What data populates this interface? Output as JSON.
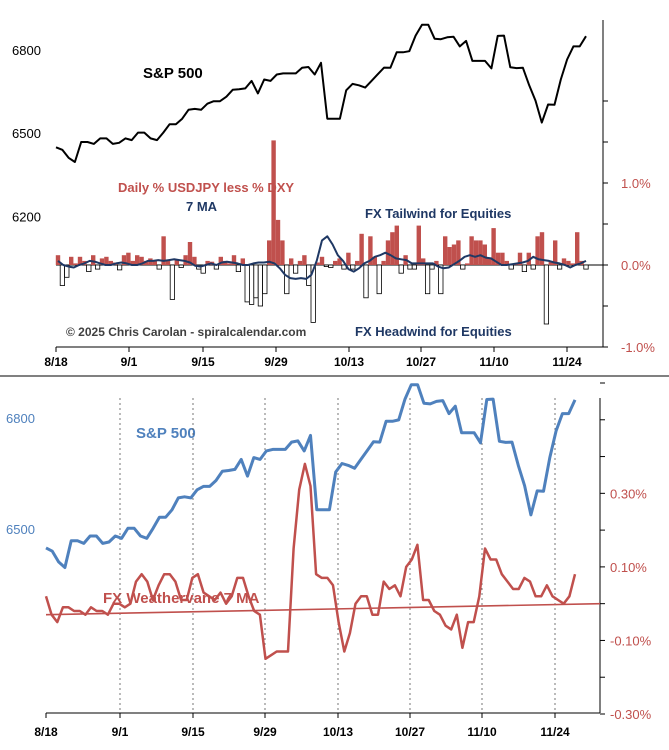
{
  "chart_data": [
    {
      "type": "line+bar",
      "x_ticks": [
        "8/18",
        "9/1",
        "9/15",
        "9/29",
        "10/13",
        "10/27",
        "11/10",
        "11/24"
      ],
      "left_axis": {
        "ticks": [
          "6800",
          "6500",
          "6200"
        ],
        "ylim": [
          6000,
          6900
        ]
      },
      "right_axis": {
        "ticks": [
          "1.0%",
          "0.0%",
          "-1.0%"
        ],
        "ylim": [
          -1.0,
          2.0
        ]
      },
      "annotations": {
        "sp500_label": "S&P 500",
        "bar_label": "Daily % USDJPY less % DXY",
        "ma_label": "7 MA",
        "tailwind": "FX Tailwind for Equities",
        "headwind": "FX Headwind for Equities",
        "copyright": "© 2025 Chris Carolan - spiralcalendar.com"
      },
      "series": [
        {
          "name": "S&P 500",
          "axis": "left",
          "values": [
            6449,
            6440,
            6411,
            6396,
            6468,
            6468,
            6461,
            6481,
            6481,
            6461,
            6465,
            6481,
            6475,
            6502,
            6502,
            6481,
            6475,
            6502,
            6532,
            6532,
            6552,
            6584,
            6587,
            6584,
            6606,
            6615,
            6615,
            6631,
            6656,
            6658,
            6661,
            6688,
            6643,
            6693,
            6688,
            6711,
            6715,
            6715,
            6715,
            6735,
            6738,
            6711,
            6753,
            6552,
            6552,
            6552,
            6654,
            6677,
            6672,
            6664,
            6688,
            6712,
            6736,
            6735,
            6791,
            6791,
            6795,
            6851,
            6890,
            6890,
            6840,
            6838,
            6845,
            6847,
            6812,
            6832,
            6760,
            6760,
            6760,
            6733,
            6850,
            6851,
            6737,
            6734,
            6735,
            6672,
            6617,
            6538,
            6603,
            6602,
            6693,
            6765,
            6812,
            6812,
            6849
          ]
        },
        {
          "name": "Daily % USDJPY less % DXY",
          "axis": "right",
          "values": [
            0.12,
            -0.25,
            -0.15,
            0.1,
            0.02,
            0.1,
            0.05,
            -0.08,
            0.12,
            -0.05,
            0.08,
            0.1,
            0.05,
            0.03,
            -0.06,
            0.12,
            0.15,
            0.05,
            0.12,
            0.1,
            0.05,
            0.08,
            0.05,
            -0.05,
            0.35,
            0.05,
            -0.42,
            0.06,
            -0.03,
            0.12,
            0.28,
            0.1,
            -0.05,
            -0.1,
            0.05,
            0.04,
            -0.05,
            0.1,
            0.05,
            0.02,
            0.12,
            -0.08,
            0.08,
            -0.45,
            -0.48,
            -0.4,
            -0.5,
            -0.35,
            0.3,
            1.52,
            0.55,
            0.3,
            -0.35,
            0.08,
            -0.1,
            0.05,
            0.12,
            -0.25,
            -0.7,
            0.03,
            0.1,
            -0.02,
            -0.03,
            0.05,
            0.08,
            -0.05,
            0.15,
            -0.05,
            0.05,
            0.38,
            -0.4,
            0.35,
            0.1,
            -0.35,
            0.05,
            0.3,
            0.4,
            0.48,
            -0.1,
            0.12,
            -0.05,
            -0.05,
            0.48,
            0.08,
            -0.35,
            -0.05,
            0.05,
            -0.35,
            0.35,
            0.22,
            0.25,
            0.3,
            -0.05,
            0.02,
            0.35,
            0.3,
            0.3,
            0.25,
            0.08,
            0.45,
            0.15,
            0.15,
            0.05,
            -0.05,
            0.02,
            0.15,
            -0.08,
            0.15,
            -0.05,
            0.35,
            0.4,
            -0.72,
            0.05,
            0.3,
            -0.05,
            0.08,
            0.05,
            0.02,
            0.4,
            0.05,
            -0.05
          ]
        },
        {
          "name": "7 MA",
          "axis": "right",
          "values": [
            0.05,
            0.0,
            -0.02,
            -0.03,
            0.0,
            0.02,
            0.05,
            0.04,
            0.02,
            0.0,
            0.0,
            0.02,
            0.03,
            0.02,
            0.0,
            0.0,
            0.02,
            0.05,
            0.05,
            0.06,
            0.05,
            0.06,
            0.07,
            0.06,
            0.05,
            0.03,
            -0.01,
            -0.02,
            0.0,
            0.02,
            0.0,
            0.03,
            0.04,
            0.03,
            0.02,
            0.0,
            0.0,
            0.02,
            0.03,
            0.03,
            0.04,
            0.02,
            -0.04,
            -0.12,
            -0.16,
            -0.17,
            -0.16,
            -0.17,
            -0.12,
            0.05,
            0.3,
            0.35,
            0.25,
            0.12,
            0.05,
            -0.05,
            -0.08,
            -0.04,
            0.02,
            0.05,
            0.1,
            0.12,
            0.15,
            0.12,
            0.08,
            0.07,
            0.06,
            0.02,
            0.02,
            0.02,
            0.02,
            0.02,
            -0.02,
            -0.04,
            -0.03,
            0.01,
            0.05,
            0.1,
            0.12,
            0.1,
            0.12,
            0.09,
            0.08,
            0.04,
            0.0,
            0.0,
            0.01,
            0.02,
            0.03,
            0.05,
            0.1,
            0.07,
            0.06,
            0.05,
            0.03,
            0.02,
            0.0,
            -0.03,
            0.0,
            0.02,
            0.05
          ]
        }
      ]
    },
    {
      "type": "line",
      "x_ticks": [
        "8/18",
        "9/1",
        "9/15",
        "9/29",
        "10/13",
        "10/27",
        "11/10",
        "11/24"
      ],
      "left_axis": {
        "ticks": [
          "6800",
          "6500"
        ],
        "ylim": [
          6000,
          6900
        ]
      },
      "right_axis": {
        "ticks": [
          "0.30%",
          "0.10%",
          "-0.10%",
          "-0.30%"
        ],
        "ylim": [
          -0.3,
          0.6
        ]
      },
      "annotations": {
        "sp500_label": "S&P 500",
        "vane_label": "FX Weathervane 7 MA"
      },
      "series": [
        {
          "name": "S&P 500",
          "axis": "left",
          "values": [
            6449,
            6440,
            6411,
            6396,
            6468,
            6468,
            6461,
            6481,
            6481,
            6461,
            6465,
            6481,
            6475,
            6502,
            6502,
            6481,
            6475,
            6502,
            6532,
            6532,
            6552,
            6584,
            6587,
            6584,
            6606,
            6615,
            6615,
            6631,
            6656,
            6658,
            6661,
            6688,
            6643,
            6693,
            6688,
            6711,
            6715,
            6715,
            6715,
            6735,
            6738,
            6711,
            6753,
            6552,
            6552,
            6552,
            6654,
            6677,
            6672,
            6664,
            6688,
            6712,
            6736,
            6735,
            6791,
            6791,
            6795,
            6851,
            6890,
            6890,
            6840,
            6838,
            6845,
            6847,
            6812,
            6832,
            6760,
            6760,
            6760,
            6733,
            6850,
            6851,
            6737,
            6734,
            6735,
            6672,
            6617,
            6538,
            6603,
            6602,
            6693,
            6765,
            6812,
            6812,
            6849
          ]
        },
        {
          "name": "FX Weathervane 7 MA",
          "axis": "right",
          "values": [
            0.02,
            -0.03,
            -0.05,
            -0.01,
            -0.01,
            -0.02,
            -0.02,
            -0.03,
            -0.01,
            -0.02,
            -0.02,
            -0.03,
            0.0,
            0.0,
            -0.01,
            0.0,
            0.06,
            0.08,
            0.06,
            0.01,
            0.05,
            0.08,
            0.08,
            0.06,
            0.01,
            0.01,
            0.07,
            0.08,
            0.03,
            0.02,
            0.01,
            0.03,
            0.0,
            0.02,
            0.07,
            0.07,
            0.02,
            -0.02,
            -0.03,
            -0.15,
            -0.14,
            -0.13,
            -0.13,
            -0.13,
            0.15,
            0.31,
            0.38,
            0.32,
            0.08,
            0.07,
            0.07,
            0.05,
            -0.05,
            -0.13,
            -0.08,
            0.0,
            0.02,
            0.02,
            -0.03,
            -0.03,
            0.06,
            0.04,
            0.05,
            0.02,
            0.1,
            0.12,
            0.16,
            0.01,
            0.01,
            -0.02,
            -0.03,
            -0.06,
            -0.07,
            -0.03,
            -0.12,
            -0.05,
            -0.05,
            0.02,
            0.15,
            0.12,
            0.12,
            0.08,
            0.06,
            0.04,
            0.04,
            0.07,
            0.06,
            0.02,
            0.02,
            0.05,
            0.02,
            0.01,
            0.0,
            0.02,
            0.08
          ]
        },
        {
          "name": "trend",
          "axis": "right",
          "values": [
            -0.03,
            0.0
          ]
        }
      ]
    }
  ]
}
